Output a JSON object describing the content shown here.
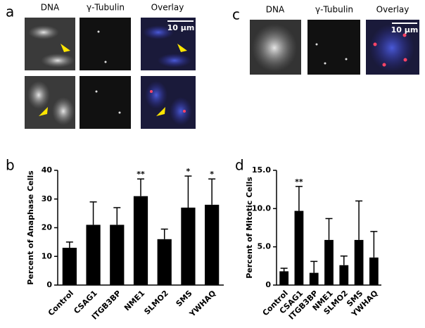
{
  "panels": {
    "a": {
      "label": "a",
      "headers": [
        "DNA",
        "γ-Tubulin",
        "Overlay"
      ],
      "scale_bar": "10 µm"
    },
    "c": {
      "label": "c",
      "headers": [
        "DNA",
        "γ-Tubulin",
        "Overlay"
      ],
      "scale_bar": "10 µm"
    }
  },
  "chart_data": [
    {
      "type": "bar",
      "panel_label": "b",
      "ylabel": "Percent of Anaphase Cells",
      "categories": [
        "Control",
        "CSAG1",
        "ITGB3BP",
        "NME1",
        "SLMO2",
        "SMS",
        "YWHAQ"
      ],
      "values": [
        13,
        21,
        21,
        31,
        16,
        27,
        28
      ],
      "errors": [
        2,
        8,
        6,
        6,
        3.5,
        11,
        9
      ],
      "significance": [
        null,
        null,
        null,
        "**",
        null,
        "*",
        "*"
      ],
      "color": "#000000",
      "ylim": [
        0,
        40
      ],
      "yticks": [
        0,
        10,
        20,
        30,
        40
      ]
    },
    {
      "type": "bar",
      "panel_label": "d",
      "ylabel": "Percent of Mitotic Cells",
      "categories": [
        "Control",
        "CSAG1",
        "ITGB3BP",
        "NME1",
        "SLMO2",
        "SMS",
        "YWHAQ"
      ],
      "values": [
        1.8,
        9.7,
        1.6,
        5.9,
        2.6,
        5.9,
        3.6
      ],
      "errors": [
        0.4,
        3.2,
        1.5,
        2.8,
        1.2,
        5.1,
        3.4
      ],
      "significance": [
        null,
        "**",
        null,
        null,
        null,
        null,
        null
      ],
      "color": "#000000",
      "ylim": [
        0,
        15
      ],
      "yticks": [
        0,
        {
          "value": 5,
          "label": "5.0"
        },
        {
          "value": 10,
          "label": "10.0"
        },
        {
          "value": 15,
          "label": "15.0"
        }
      ]
    }
  ]
}
